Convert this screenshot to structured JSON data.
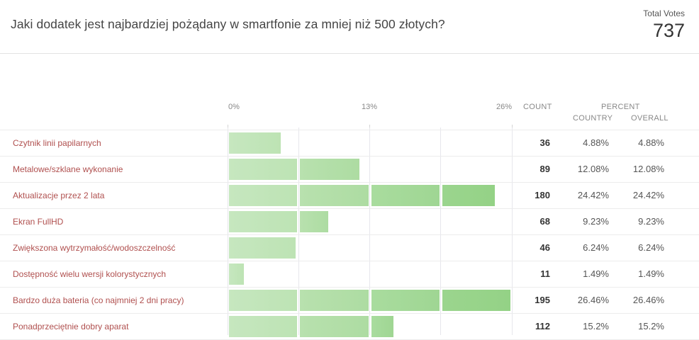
{
  "header": {
    "title": "Jaki dodatek jest najbardziej pożądany w smartfonie za mniej niż 500 złotych?",
    "total_votes_label": "Total Votes",
    "total_votes_value": "737"
  },
  "columns": {
    "axis_ticks": [
      "0%",
      "13%",
      "26%"
    ],
    "count": "COUNT",
    "percent": "PERCENT",
    "country": "COUNTRY",
    "overall": "OVERALL"
  },
  "colors": {
    "bar_light": "#c4e6bd",
    "bar_dark": "#97d68a",
    "label": "#b0504f"
  },
  "rows": [
    {
      "label": "Czytnik linii papilarnych",
      "count": "36",
      "country": "4.88%",
      "overall": "4.88%"
    },
    {
      "label": "Metalowe/szklane wykonanie",
      "count": "89",
      "country": "12.08%",
      "overall": "12.08%"
    },
    {
      "label": "Aktualizacje przez 2 lata",
      "count": "180",
      "country": "24.42%",
      "overall": "24.42%"
    },
    {
      "label": "Ekran FullHD",
      "count": "68",
      "country": "9.23%",
      "overall": "9.23%"
    },
    {
      "label": "Zwiększona wytrzymałość/wodoszczelność",
      "count": "46",
      "country": "6.24%",
      "overall": "6.24%"
    },
    {
      "label": "Dostępność wielu wersji kolorystycznych",
      "count": "11",
      "country": "1.49%",
      "overall": "1.49%"
    },
    {
      "label": "Bardzo duża bateria (co najmniej 2 dni pracy)",
      "count": "195",
      "country": "26.46%",
      "overall": "26.46%"
    },
    {
      "label": "Ponadprzeciętnie dobry aparat",
      "count": "112",
      "country": "15.2%",
      "overall": "15.2%"
    }
  ],
  "chart_data": {
    "type": "bar",
    "orientation": "horizontal",
    "title": "Jaki dodatek jest najbardziej pożądany w smartfonie za mniej niż 500 złotych?",
    "categories": [
      "Czytnik linii papilarnych",
      "Metalowe/szklane wykonanie",
      "Aktualizacje przez 2 lata",
      "Ekran FullHD",
      "Zwiększona wytrzymałość/wodoszczelność",
      "Dostępność wielu wersji kolorystycznych",
      "Bardzo duża bateria (co najmniej 2 dni pracy)",
      "Ponadprzeciętnie dobry aparat"
    ],
    "series": [
      {
        "name": "Percent",
        "values": [
          4.88,
          12.08,
          24.42,
          9.23,
          6.24,
          1.49,
          26.46,
          15.2
        ]
      },
      {
        "name": "Count",
        "values": [
          36,
          89,
          180,
          68,
          46,
          11,
          195,
          112
        ]
      }
    ],
    "total": 737,
    "xlabel": "",
    "ylabel": "",
    "xlim": [
      0,
      26
    ],
    "xticks": [
      "0%",
      "13%",
      "26%"
    ],
    "grid": true,
    "legend": "none"
  }
}
